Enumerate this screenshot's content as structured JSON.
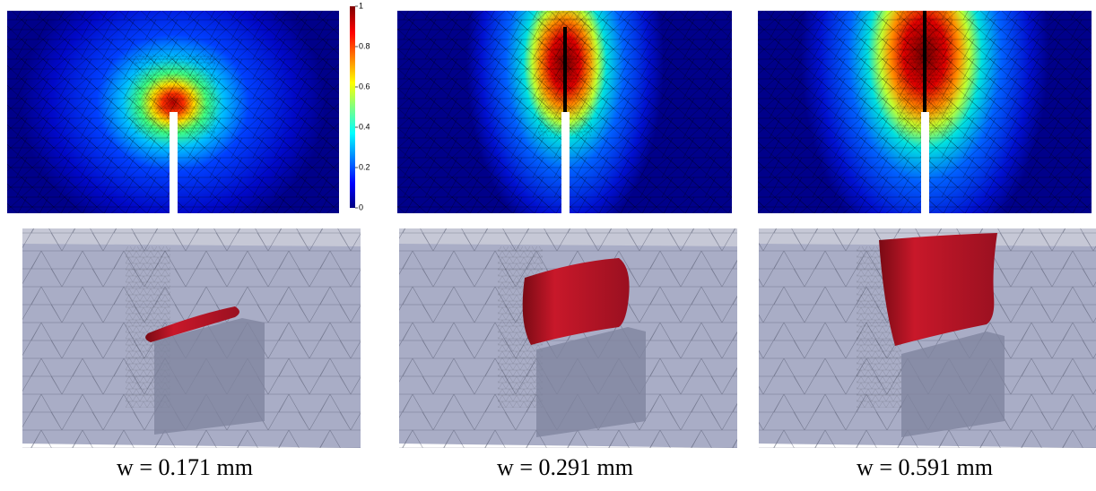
{
  "colorbar": {
    "lim": [
      0,
      1
    ],
    "ticks": [
      0,
      0.2,
      0.4,
      0.6,
      0.8,
      1
    ]
  },
  "panels": [
    {
      "caption": "w = 0.171 mm"
    },
    {
      "caption": "w = 0.291 mm"
    },
    {
      "caption": "w = 0.591 mm"
    }
  ]
}
